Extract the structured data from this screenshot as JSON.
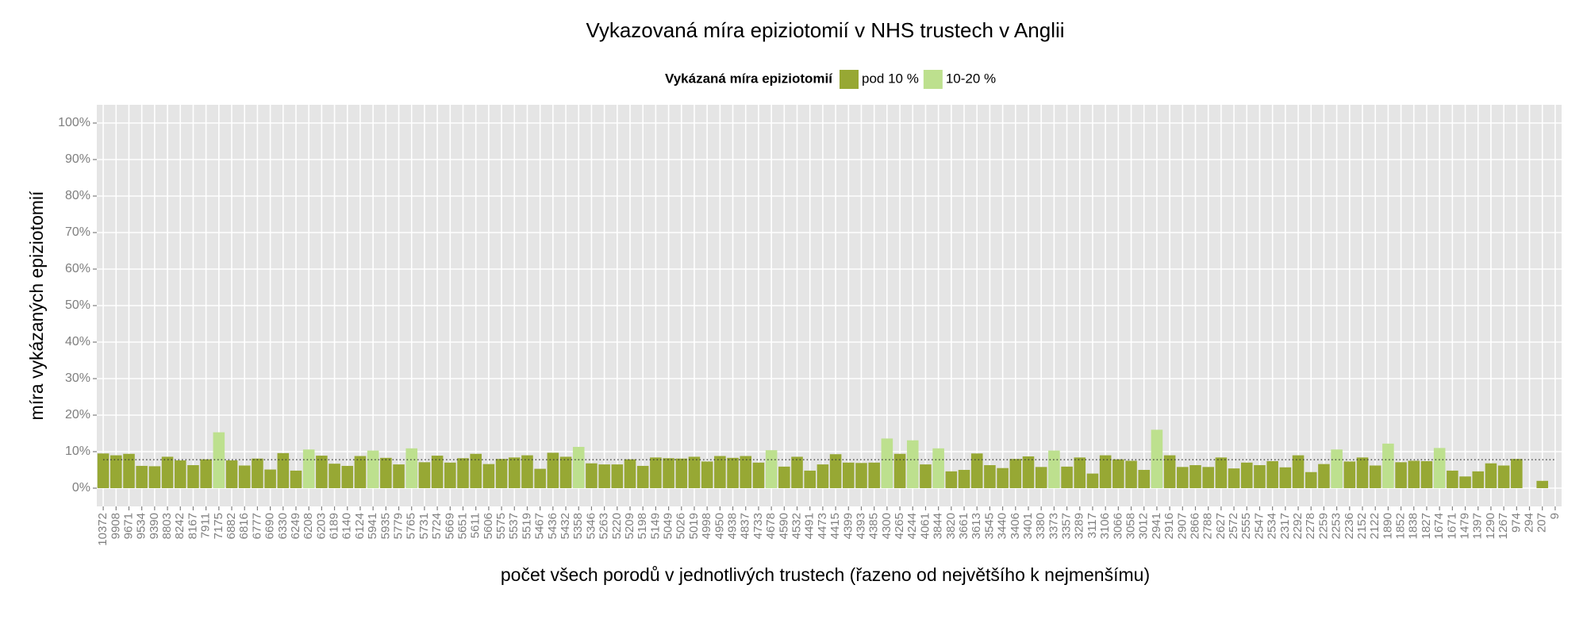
{
  "chart_data": {
    "type": "bar",
    "title": "Vykazovaná míra epiziotomií v NHS trustech v Anglii",
    "legend_title": "Vykázaná míra epiziotomií",
    "x_label": "počet všech porodů v jednotlivých trustech (řazeno od největšího k nejmenšímu)",
    "y_label": "míra vykázaných epiziotomií",
    "categories": [
      "10372",
      "9908",
      "9671",
      "9534",
      "9390",
      "8803",
      "8242",
      "8167",
      "7911",
      "7175",
      "6882",
      "6816",
      "6777",
      "6690",
      "6330",
      "6249",
      "6208",
      "6203",
      "6189",
      "6140",
      "6124",
      "5941",
      "5935",
      "5779",
      "5765",
      "5731",
      "5724",
      "5669",
      "5651",
      "5611",
      "5606",
      "5575",
      "5537",
      "5519",
      "5467",
      "5436",
      "5432",
      "5358",
      "5346",
      "5263",
      "5220",
      "5209",
      "5198",
      "5149",
      "5049",
      "5026",
      "5019",
      "4998",
      "4950",
      "4938",
      "4837",
      "4733",
      "4678",
      "4590",
      "4532",
      "4491",
      "4473",
      "4415",
      "4399",
      "4393",
      "4385",
      "4300",
      "4265",
      "4244",
      "4061",
      "3844",
      "3820",
      "3661",
      "3613",
      "3545",
      "3440",
      "3406",
      "3401",
      "3380",
      "3373",
      "3357",
      "3289",
      "3117",
      "3106",
      "3066",
      "3058",
      "3012",
      "2941",
      "2916",
      "2907",
      "2866",
      "2788",
      "2627",
      "2572",
      "2555",
      "2547",
      "2534",
      "2317",
      "2292",
      "2278",
      "2259",
      "2253",
      "2236",
      "2152",
      "2122",
      "1890",
      "1852",
      "1838",
      "1827",
      "1674",
      "1671",
      "1479",
      "1397",
      "1290",
      "1267",
      "974",
      "294",
      "207",
      "9"
    ],
    "series": [
      {
        "name": "pod 10 %",
        "color": "#97a834",
        "values": [
          9.5,
          9,
          9.4,
          6.1,
          6,
          8.6,
          7.6,
          6.3,
          7.9,
          null,
          7.6,
          6.2,
          8.1,
          5.1,
          9.6,
          4.8,
          null,
          8.9,
          6.7,
          6.1,
          8.8,
          null,
          8.3,
          6.5,
          null,
          7.1,
          8.9,
          7,
          8.2,
          9.4,
          6.6,
          8,
          8.4,
          9,
          5.3,
          9.7,
          8.6,
          null,
          6.8,
          6.5,
          6.5,
          7.9,
          6.1,
          8.4,
          8.2,
          8.1,
          8.6,
          7.3,
          8.8,
          8.3,
          8.8,
          7,
          null,
          5.9,
          8.6,
          4.8,
          6.5,
          9.3,
          7,
          6.9,
          7,
          null,
          9.4,
          null,
          6.5,
          null,
          4.6,
          5,
          9.5,
          6.3,
          5.5,
          8,
          8.7,
          5.8,
          null,
          5.9,
          8.4,
          4,
          9,
          7.9,
          7.5,
          5,
          null,
          9,
          5.8,
          6.3,
          5.8,
          8.4,
          5.4,
          7,
          6.3,
          7.4,
          5.7,
          9,
          4.4,
          6.6,
          null,
          7.3,
          8.4,
          6.2,
          null,
          7.1,
          7.5,
          7.4,
          null,
          4.8,
          3.2,
          4.6,
          6.8,
          6.2,
          8,
          null,
          2,
          null
        ]
      },
      {
        "name": "10-20 %",
        "color": "#bde08e",
        "values": [
          null,
          null,
          null,
          null,
          null,
          null,
          null,
          null,
          null,
          15.3,
          null,
          null,
          null,
          null,
          null,
          null,
          10.6,
          null,
          null,
          null,
          null,
          10.3,
          null,
          null,
          10.9,
          null,
          null,
          null,
          null,
          null,
          null,
          null,
          null,
          null,
          null,
          null,
          null,
          11.3,
          null,
          null,
          null,
          null,
          null,
          null,
          null,
          null,
          null,
          null,
          null,
          null,
          null,
          null,
          10.4,
          null,
          null,
          null,
          null,
          null,
          null,
          null,
          null,
          13.6,
          null,
          13.1,
          null,
          10.9,
          null,
          null,
          null,
          null,
          null,
          null,
          null,
          null,
          10.3,
          null,
          null,
          null,
          null,
          null,
          null,
          null,
          16,
          null,
          null,
          null,
          null,
          null,
          null,
          null,
          null,
          null,
          null,
          null,
          null,
          null,
          10.6,
          null,
          null,
          null,
          12.2,
          null,
          null,
          null,
          11,
          null,
          null,
          null,
          null,
          null,
          null,
          null,
          null,
          null
        ]
      }
    ],
    "hline": 7.8,
    "ylim": [
      -5,
      105
    ],
    "yticks": [
      {
        "value": 0,
        "label": "0%"
      },
      {
        "value": 10,
        "label": "10%"
      },
      {
        "value": 20,
        "label": "20%"
      },
      {
        "value": 30,
        "label": "30%"
      },
      {
        "value": 40,
        "label": "40%"
      },
      {
        "value": 50,
        "label": "50%"
      },
      {
        "value": 60,
        "label": "60%"
      },
      {
        "value": 70,
        "label": "70%"
      },
      {
        "value": 80,
        "label": "80%"
      },
      {
        "value": 90,
        "label": "90%"
      },
      {
        "value": 100,
        "label": "100%"
      }
    ],
    "grid": true
  }
}
